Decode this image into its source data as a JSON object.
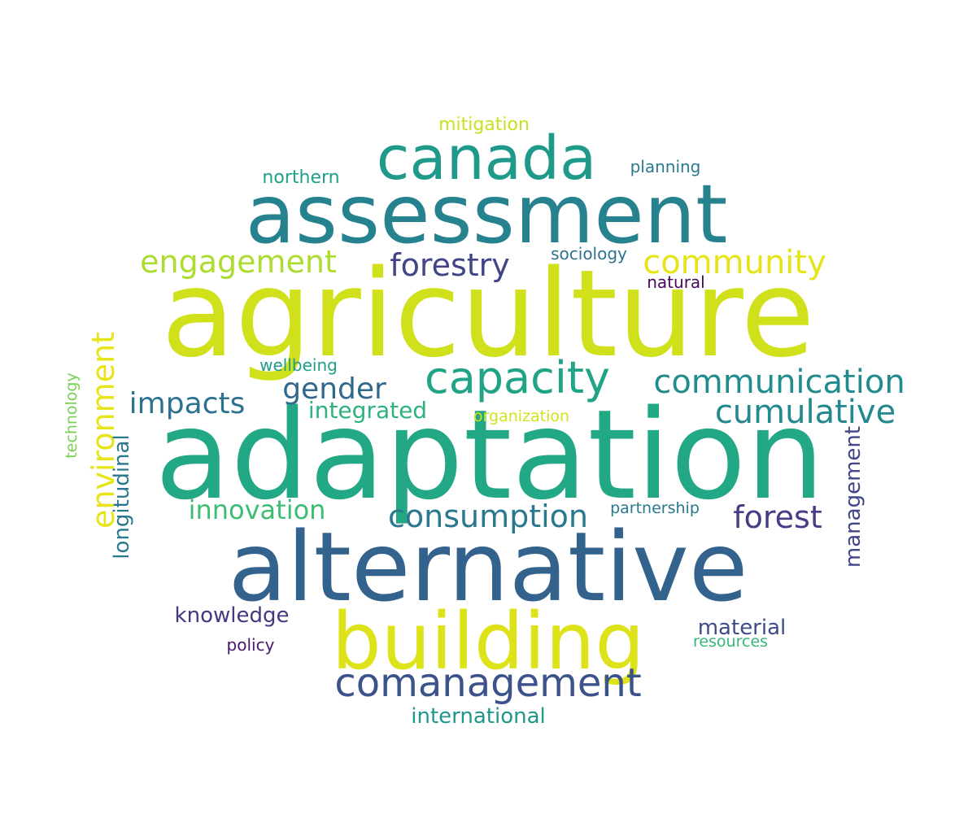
{
  "words": [
    {
      "text": "agriculture",
      "color": "#d0e11c"
    },
    {
      "text": "adaptation",
      "color": "#22a884"
    },
    {
      "text": "alternative",
      "color": "#33638d"
    },
    {
      "text": "assessment",
      "color": "#26828e"
    },
    {
      "text": "building",
      "color": "#dde318"
    },
    {
      "text": "canada",
      "color": "#1f9a8a"
    },
    {
      "text": "capacity",
      "color": "#20a386"
    },
    {
      "text": "comanagement",
      "color": "#3b528b"
    },
    {
      "text": "communication",
      "color": "#228c8d"
    },
    {
      "text": "cumulative",
      "color": "#23898e"
    },
    {
      "text": "consumption",
      "color": "#2a788e"
    },
    {
      "text": "environment",
      "color": "#e7e419"
    },
    {
      "text": "forestry",
      "color": "#414487"
    },
    {
      "text": "community",
      "color": "#e5e419"
    },
    {
      "text": "engagement",
      "color": "#addc30"
    },
    {
      "text": "forest",
      "color": "#433e85"
    },
    {
      "text": "impacts",
      "color": "#2c728e"
    },
    {
      "text": "gender",
      "color": "#31688e"
    },
    {
      "text": "innovation",
      "color": "#3dbc74"
    },
    {
      "text": "integrated",
      "color": "#2db27d"
    },
    {
      "text": "longitudinal",
      "color": "#2a788e"
    },
    {
      "text": "management",
      "color": "#404688"
    },
    {
      "text": "knowledge",
      "color": "#453781"
    },
    {
      "text": "material",
      "color": "#3e4a89"
    },
    {
      "text": "international",
      "color": "#1f988b"
    },
    {
      "text": "northern",
      "color": "#1fa088"
    },
    {
      "text": "mitigation",
      "color": "#cae11f"
    },
    {
      "text": "planning",
      "color": "#297a8e"
    },
    {
      "text": "sociology",
      "color": "#2c728e"
    },
    {
      "text": "natural",
      "color": "#46085c"
    },
    {
      "text": "wellbeing",
      "color": "#1f9e89"
    },
    {
      "text": "organization",
      "color": "#d2e21b"
    },
    {
      "text": "partnership",
      "color": "#2a788e"
    },
    {
      "text": "technology",
      "color": "#7ad151"
    },
    {
      "text": "resources",
      "color": "#35b779"
    },
    {
      "text": "policy",
      "color": "#48186a"
    }
  ]
}
